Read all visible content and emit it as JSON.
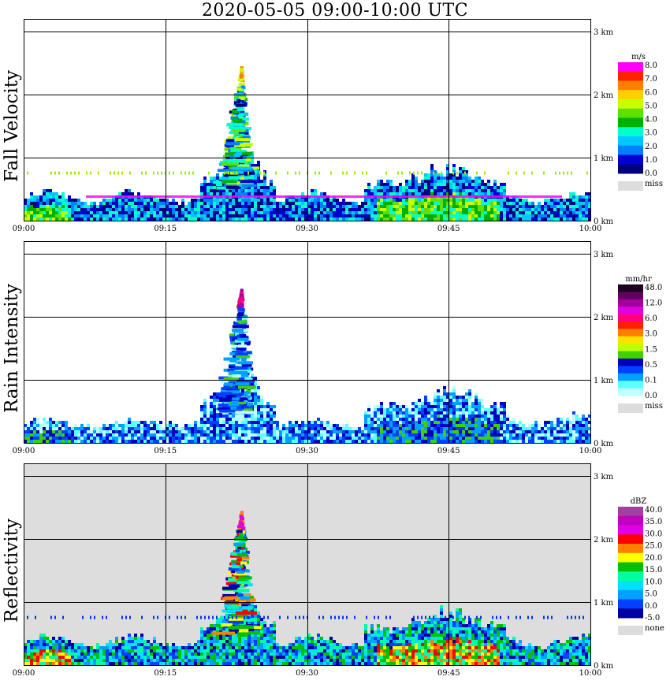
{
  "title": "2020-05-05   09:00-10:00 UTC",
  "chart_data": [
    {
      "type": "heatmap",
      "ylabel": "Fall Velocity",
      "x_ticks": [
        "09:00",
        "09:15",
        "09:30",
        "09:45",
        "10:00"
      ],
      "y_ticks": [
        "0 km",
        "1 km",
        "2 km",
        "3 km"
      ],
      "xlim": [
        "09:00",
        "10:00"
      ],
      "ylim_km": [
        0,
        3
      ],
      "background": "white",
      "colorbar": {
        "unit": "m/s",
        "labels": [
          "8.0",
          "7.0",
          "6.0",
          "5.0",
          "4.0",
          "3.0",
          "2.0",
          "1.0",
          "0.0"
        ],
        "colors": [
          "#ff00ff",
          "#ff2000",
          "#ff8000",
          "#ffd000",
          "#c8ff00",
          "#60e000",
          "#00b000",
          "#00ffcc",
          "#00c8ff",
          "#0080ff",
          "#0000d0",
          "#000080"
        ],
        "missing_label": "miss",
        "missing_color": "#dddddd"
      }
    },
    {
      "type": "heatmap",
      "ylabel": "Rain Intensity",
      "x_ticks": [
        "09:00",
        "09:15",
        "09:30",
        "09:45",
        "10:00"
      ],
      "y_ticks": [
        "0 km",
        "1 km",
        "2 km",
        "3 km"
      ],
      "xlim": [
        "09:00",
        "10:00"
      ],
      "ylim_km": [
        0,
        3
      ],
      "background": "white",
      "colorbar": {
        "unit": "mm/hr",
        "labels": [
          "48.0",
          "12.0",
          "6.0",
          "3.0",
          "1.5",
          "0.5",
          "0.1",
          "0.0"
        ],
        "colors": [
          "#200020",
          "#600060",
          "#a000a0",
          "#e000e0",
          "#ff0080",
          "#ff2000",
          "#ff8000",
          "#ffe000",
          "#c0ff00",
          "#40d000",
          "#0000c0",
          "#0040ff",
          "#00a0ff",
          "#60ffff",
          "#c0ffff"
        ],
        "missing_label": "miss",
        "missing_color": "#dddddd"
      }
    },
    {
      "type": "heatmap",
      "ylabel": "Reflectivity",
      "x_ticks": [
        "09:00",
        "09:15",
        "09:30",
        "09:45",
        "10:00"
      ],
      "y_ticks": [
        "0 km",
        "1 km",
        "2 km",
        "3 km"
      ],
      "xlim": [
        "09:00",
        "10:00"
      ],
      "ylim_km": [
        0,
        3
      ],
      "background": "#dddddd",
      "colorbar": {
        "unit": "dBZ",
        "labels": [
          "40.0",
          "35.0",
          "30.0",
          "25.0",
          "20.0",
          "15.0",
          "10.0",
          "5.0",
          "0.0",
          "-5.0"
        ],
        "colors": [
          "#a040a0",
          "#c000c0",
          "#e000e0",
          "#ff0000",
          "#ff8000",
          "#ffff00",
          "#00c000",
          "#00ffa0",
          "#00e0ff",
          "#00a0ff",
          "#0040ff",
          "#0000a0"
        ],
        "missing_label": "none",
        "missing_color": "#dddddd"
      }
    }
  ]
}
